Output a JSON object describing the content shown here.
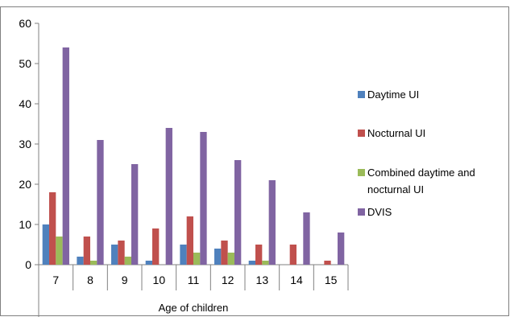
{
  "chart_data": {
    "type": "bar",
    "categories": [
      "7",
      "8",
      "9",
      "10",
      "11",
      "12",
      "13",
      "14",
      "15"
    ],
    "series": [
      {
        "name": "Daytime UI",
        "color": "#4F81BD",
        "values": [
          10,
          2,
          5,
          1,
          5,
          4,
          1,
          0,
          0
        ]
      },
      {
        "name": "Nocturnal UI",
        "color": "#C0504D",
        "values": [
          18,
          7,
          6,
          9,
          12,
          6,
          5,
          5,
          1
        ]
      },
      {
        "name": "Combined daytime and nocturnal UI",
        "color": "#9BBB59",
        "values": [
          7,
          1,
          2,
          0,
          3,
          3,
          1,
          0,
          0
        ]
      },
      {
        "name": "DVIS",
        "color": "#8064A2",
        "values": [
          54,
          31,
          25,
          34,
          33,
          26,
          21,
          13,
          8
        ]
      }
    ],
    "legend_lines": [
      [
        "Daytime UI"
      ],
      [
        "Nocturnal UI"
      ],
      [
        "Combined daytime and",
        "nocturnal UI"
      ],
      [
        "DVIS"
      ]
    ],
    "title": "",
    "xlabel": "Age of children",
    "ylabel": "",
    "ylim": [
      0,
      60
    ],
    "yticks": [
      0,
      10,
      20,
      30,
      40,
      50,
      60
    ],
    "grid": false,
    "legend_position": "right"
  }
}
